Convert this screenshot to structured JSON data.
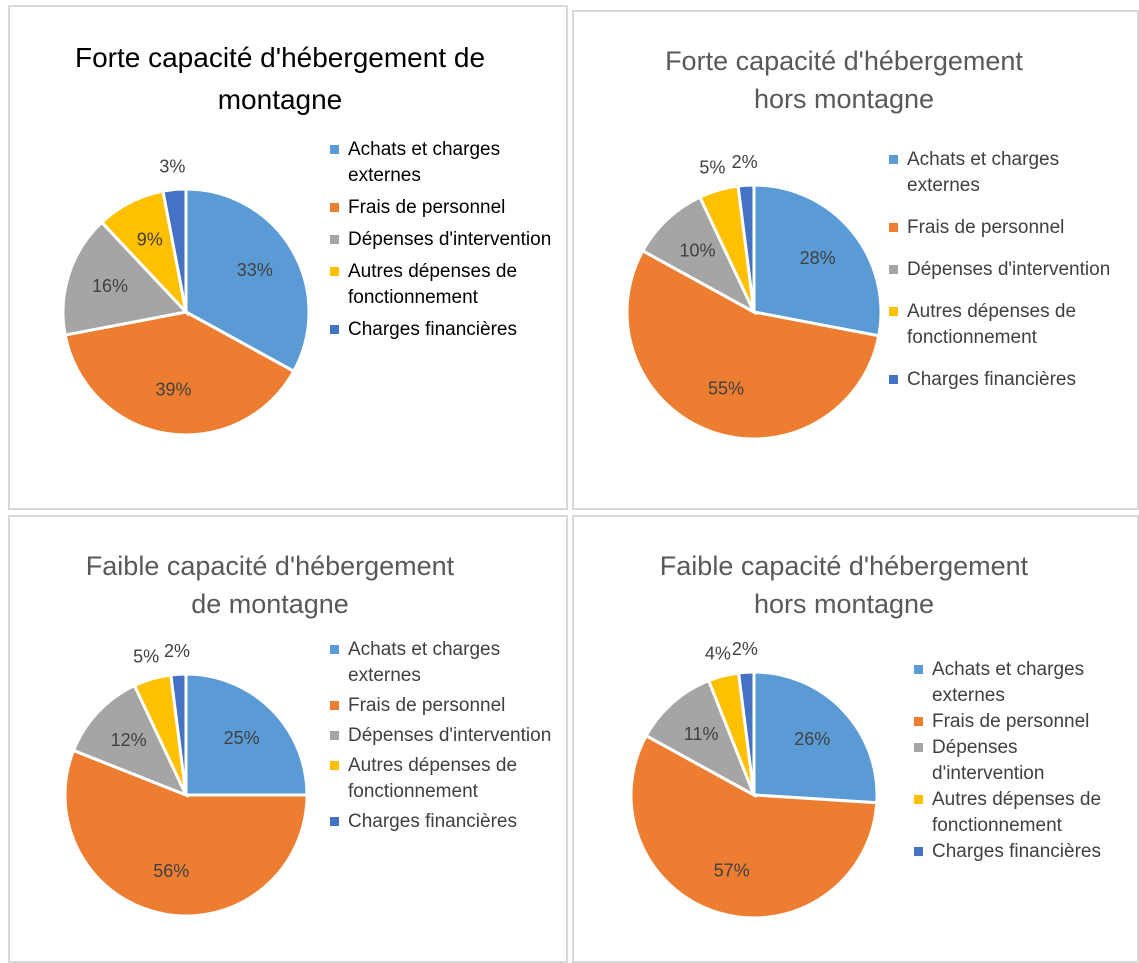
{
  "chart_data": [
    {
      "type": "pie",
      "title": "Forte capacité d'hébergement de montagne",
      "categories": [
        "Achats et charges externes",
        "Frais de personnel",
        "Dépenses d'intervention",
        "Autres dépenses de fonctionnement",
        "Charges financières"
      ],
      "values": [
        33,
        39,
        16,
        9,
        3
      ],
      "value_labels": [
        "33%",
        "39%",
        "16%",
        "9%",
        "3%"
      ],
      "colors": [
        "#5b9bd5",
        "#ed7d31",
        "#a5a5a5",
        "#ffc000",
        "#4472c4"
      ]
    },
    {
      "type": "pie",
      "title": "Forte capacité d'hébergement hors montagne",
      "categories": [
        "Achats et charges externes",
        "Frais de personnel",
        "Dépenses d'intervention",
        "Autres dépenses de fonctionnement",
        "Charges financières"
      ],
      "values": [
        28,
        55,
        10,
        5,
        2
      ],
      "value_labels": [
        "28%",
        "55%",
        "10%",
        "5%",
        "2%"
      ],
      "colors": [
        "#5b9bd5",
        "#ed7d31",
        "#a5a5a5",
        "#ffc000",
        "#4472c4"
      ]
    },
    {
      "type": "pie",
      "title": "Faible capacité d'hébergement de montagne",
      "categories": [
        "Achats et charges externes",
        "Frais de personnel",
        "Dépenses d'intervention",
        "Autres dépenses de fonctionnement",
        "Charges financières"
      ],
      "values": [
        25,
        56,
        12,
        5,
        2
      ],
      "value_labels": [
        "25%",
        "56%",
        "12%",
        "5%",
        "2%"
      ],
      "colors": [
        "#5b9bd5",
        "#ed7d31",
        "#a5a5a5",
        "#ffc000",
        "#4472c4"
      ]
    },
    {
      "type": "pie",
      "title": "Faible capacité d'hébergement hors montagne",
      "categories": [
        "Achats et charges externes",
        "Frais de personnel",
        "Dépenses d'intervention",
        "Autres dépenses de fonctionnement",
        "Charges financières"
      ],
      "values": [
        26,
        57,
        11,
        4,
        2
      ],
      "value_labels": [
        "26%",
        "57%",
        "11%",
        "4%",
        "2%"
      ],
      "colors": [
        "#5b9bd5",
        "#ed7d31",
        "#a5a5a5",
        "#ffc000",
        "#4472c4"
      ]
    }
  ]
}
